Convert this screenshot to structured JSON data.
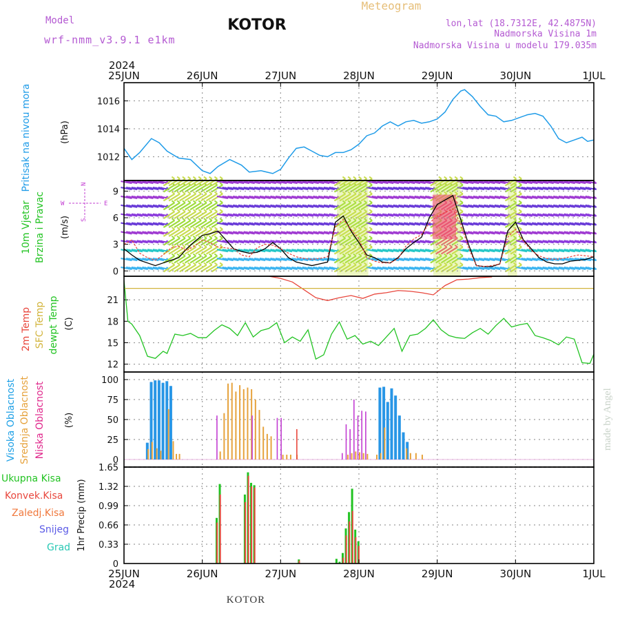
{
  "header": {
    "model_label": "Model",
    "model_name": "wrf-nmm_v3.9.1 e1km",
    "title": "KOTOR",
    "meteogram": "Meteogram",
    "lonlat": "lon,lat (18.7312E, 42.4875N)",
    "elevation": "Nadmorska Visina 1m",
    "model_elevation": "Nadmorska Visina u modelu 179.035m",
    "year_top": "2024",
    "year_bottom": "2024",
    "footer": "KOTOR",
    "watermark": "made by Angel"
  },
  "colors": {
    "pressure": "#1e9be8",
    "green": "#22c322",
    "red": "#e8463c",
    "orange": "#e6a23c",
    "purple": "#c23cd2",
    "blue": "#2896e6",
    "black": "#000000",
    "grid": "#9a9a9a",
    "header_purple": "#b45ad2",
    "header_orange": "#e6be78"
  },
  "time_axis": {
    "labels": [
      "25JUN",
      "26JUN",
      "27JUN",
      "28JUN",
      "29JUN",
      "30JUN",
      "1JUL"
    ],
    "days": 6
  },
  "chart_data": [
    {
      "type": "line",
      "ylabel": [
        "Pritisak na nivou mora",
        "(hPa)"
      ],
      "yticks": [
        1012,
        1014,
        1016
      ],
      "ylim": [
        1010.3,
        1017.3
      ],
      "series": [
        {
          "color": "#1e9be8",
          "x": [
            0,
            0.1,
            0.2,
            0.35,
            0.45,
            0.55,
            0.7,
            0.85,
            1.0,
            1.1,
            1.2,
            1.35,
            1.5,
            1.6,
            1.75,
            1.9,
            2.0,
            2.1,
            2.2,
            2.3,
            2.4,
            2.5,
            2.6,
            2.7,
            2.8,
            2.9,
            3.0,
            3.1,
            3.2,
            3.3,
            3.4,
            3.5,
            3.6,
            3.7,
            3.8,
            3.9,
            4.0,
            4.1,
            4.2,
            4.3,
            4.35,
            4.45,
            4.55,
            4.65,
            4.75,
            4.85,
            4.95,
            5.05,
            5.15,
            5.25,
            5.35,
            5.45,
            5.55,
            5.65,
            5.75,
            5.85,
            5.92,
            6.0
          ],
          "values": [
            1012.6,
            1011.8,
            1012.3,
            1013.3,
            1013.0,
            1012.4,
            1011.9,
            1011.8,
            1011.0,
            1010.8,
            1011.3,
            1011.8,
            1011.4,
            1010.9,
            1011.0,
            1010.8,
            1011.1,
            1011.9,
            1012.6,
            1012.7,
            1012.4,
            1012.1,
            1012.0,
            1012.3,
            1012.3,
            1012.5,
            1012.9,
            1013.5,
            1013.7,
            1014.2,
            1014.5,
            1014.2,
            1014.5,
            1014.6,
            1014.4,
            1014.5,
            1014.7,
            1015.2,
            1016.1,
            1016.7,
            1016.8,
            1016.3,
            1015.6,
            1015.0,
            1014.9,
            1014.5,
            1014.6,
            1014.8,
            1015.0,
            1015.1,
            1014.9,
            1014.2,
            1013.3,
            1013.0,
            1013.2,
            1013.4,
            1013.1,
            1013.2
          ]
        }
      ]
    },
    {
      "type": "line",
      "ylabel": [
        "10m Vjetar",
        "Brzina i Pravac",
        "(m/s)"
      ],
      "yticks": [
        0,
        3,
        6,
        9
      ],
      "ylim": [
        -0.6,
        10.2
      ],
      "compass": {
        "n": "N",
        "e": "E",
        "w": "W",
        "s": "S"
      },
      "series": [
        {
          "name": "black",
          "x": [
            0,
            0.1,
            0.2,
            0.3,
            0.4,
            0.5,
            0.6,
            0.7,
            0.8,
            0.9,
            1.0,
            1.1,
            1.2,
            1.3,
            1.4,
            1.5,
            1.6,
            1.7,
            1.8,
            1.9,
            2.0,
            2.1,
            2.2,
            2.3,
            2.4,
            2.5,
            2.6,
            2.7,
            2.8,
            2.9,
            3.0,
            3.1,
            3.2,
            3.3,
            3.4,
            3.5,
            3.6,
            3.7,
            3.8,
            3.9,
            4.0,
            4.1,
            4.2,
            4.3,
            4.4,
            4.5,
            4.6,
            4.7,
            4.8,
            4.9,
            5.0,
            5.1,
            5.2,
            5.3,
            5.4,
            5.5,
            5.6,
            5.7,
            5.8,
            5.9,
            6.0
          ],
          "values": [
            2.5,
            1.8,
            1.2,
            0.9,
            0.6,
            0.9,
            1.2,
            1.5,
            2.5,
            3.3,
            4.0,
            4.2,
            4.5,
            3.5,
            2.5,
            2.2,
            2.0,
            2.1,
            2.5,
            3.2,
            2.5,
            1.5,
            1.0,
            0.8,
            0.6,
            0.8,
            1.0,
            5.5,
            6.2,
            4.5,
            3.2,
            1.8,
            1.5,
            1.0,
            0.9,
            1.5,
            2.5,
            3.2,
            3.8,
            6.0,
            7.5,
            8.0,
            8.5,
            5.8,
            3.0,
            0.6,
            0.5,
            0.5,
            0.8,
            4.5,
            5.5,
            3.5,
            2.5,
            1.5,
            1.0,
            0.8,
            0.8,
            1.1,
            1.2,
            1.3,
            1.6
          ]
        },
        {
          "name": "red",
          "x": [
            0,
            0.1,
            0.2,
            0.3,
            0.4,
            0.5,
            0.6,
            0.7,
            0.8,
            0.9,
            1.0,
            1.1,
            1.2,
            1.3,
            1.4,
            1.5,
            1.6,
            1.7,
            1.8,
            1.9,
            2.0,
            2.1,
            2.2,
            2.3,
            2.4,
            2.5,
            2.6,
            2.7,
            2.8,
            2.9,
            3.0,
            3.1,
            3.2,
            3.3,
            3.4,
            3.5,
            3.6,
            3.7,
            3.8,
            3.9,
            4.0,
            4.1,
            4.2,
            4.3,
            4.4,
            4.5,
            4.6,
            4.7,
            4.8,
            4.9,
            5.0,
            5.1,
            5.2,
            5.3,
            5.4,
            5.5,
            5.6,
            5.7,
            5.8,
            5.9,
            6.0
          ],
          "values": [
            3.0,
            3.5,
            2.0,
            1.5,
            1.2,
            1.8,
            2.6,
            2.8,
            2.3,
            2.8,
            3.5,
            3.2,
            2.7,
            2.6,
            2.5,
            1.8,
            1.6,
            2.6,
            3.0,
            2.9,
            2.5,
            2.0,
            1.6,
            1.4,
            1.3,
            1.4,
            1.6,
            5.0,
            5.8,
            4.7,
            3.6,
            1.5,
            1.1,
            0.9,
            0.9,
            1.4,
            2.8,
            3.6,
            4.1,
            5.4,
            6.2,
            6.6,
            7.0,
            5.3,
            2.6,
            0.6,
            0.5,
            0.6,
            0.8,
            3.8,
            4.7,
            3.4,
            2.3,
            1.7,
            1.4,
            1.3,
            1.4,
            1.6,
            1.8,
            1.7,
            1.6
          ]
        }
      ]
    },
    {
      "type": "line",
      "ylabel": [
        "2m Temp",
        "SFC Temp",
        "dewpt Temp",
        "(C)"
      ],
      "yticks": [
        12,
        15,
        18,
        21
      ],
      "ylim": [
        10.9,
        24.3
      ],
      "series": [
        {
          "name": "green",
          "x": [
            0,
            0.05,
            0.1,
            0.2,
            0.3,
            0.4,
            0.5,
            0.55,
            0.65,
            0.75,
            0.85,
            0.95,
            1.05,
            1.15,
            1.25,
            1.35,
            1.45,
            1.55,
            1.65,
            1.75,
            1.85,
            1.95,
            2.05,
            2.15,
            2.25,
            2.35,
            2.45,
            2.55,
            2.65,
            2.75,
            2.85,
            2.95,
            3.05,
            3.15,
            3.25,
            3.35,
            3.45,
            3.55,
            3.65,
            3.75,
            3.85,
            3.95,
            4.05,
            4.15,
            4.25,
            4.35,
            4.45,
            4.55,
            4.65,
            4.75,
            4.85,
            4.95,
            5.05,
            5.15,
            5.25,
            5.35,
            5.45,
            5.55,
            5.65,
            5.75,
            5.85,
            5.95,
            6.0
          ],
          "values": [
            23.7,
            18.0,
            17.6,
            16.0,
            13.1,
            12.8,
            13.8,
            13.5,
            16.2,
            16.0,
            16.3,
            15.7,
            15.7,
            16.7,
            17.5,
            17.0,
            16.0,
            17.8,
            15.8,
            16.7,
            17.0,
            17.8,
            15.0,
            15.8,
            15.2,
            16.8,
            12.7,
            13.3,
            16.2,
            17.9,
            15.5,
            16.0,
            14.8,
            15.2,
            14.6,
            15.8,
            17.0,
            13.8,
            16.0,
            16.2,
            17.0,
            18.2,
            16.8,
            16.0,
            15.7,
            15.6,
            16.4,
            17.0,
            16.2,
            17.4,
            18.4,
            17.2,
            17.5,
            17.7,
            16.0,
            15.7,
            15.3,
            14.7,
            15.8,
            15.5,
            12.2,
            12.1,
            13.4
          ]
        },
        {
          "name": "red",
          "x": [
            1.85,
            2.0,
            2.15,
            2.3,
            2.45,
            2.6,
            2.75,
            2.9,
            3.05,
            3.2,
            3.35,
            3.5,
            3.65,
            3.8,
            3.95,
            4.1,
            4.25,
            4.4,
            4.55,
            4.7
          ],
          "values": [
            24.3,
            24.0,
            23.5,
            22.4,
            21.3,
            20.9,
            21.3,
            21.6,
            21.2,
            21.8,
            22.0,
            22.3,
            22.2,
            22.0,
            21.7,
            23.0,
            23.8,
            23.9,
            24.1,
            24.2
          ]
        },
        {
          "name": "orange",
          "x": [
            0,
            6.0
          ],
          "values": [
            22.6,
            22.6
          ]
        }
      ]
    },
    {
      "type": "bar",
      "ylabel": [
        "Visoka Oblacnost",
        "Srednja Oblacnost",
        "Niska Oblacnost",
        "(%)"
      ],
      "yticks": [
        0,
        25,
        50,
        75,
        100
      ],
      "ylim": [
        0,
        100
      ],
      "series": [
        {
          "name": "high",
          "color": "#2896e6",
          "x": [
            0.28,
            0.33,
            0.38,
            0.43,
            0.48,
            0.53,
            0.58,
            3.25,
            3.3,
            3.35,
            3.4,
            3.45,
            3.5,
            3.55,
            3.6
          ],
          "values": [
            21,
            97,
            99,
            99,
            96,
            98,
            92,
            90,
            91,
            72,
            89,
            80,
            55,
            34,
            22
          ]
        },
        {
          "name": "mid",
          "color": "#e6a23c",
          "x": [
            0.3,
            0.35,
            0.41,
            0.46,
            0.56,
            0.62,
            0.66,
            0.7,
            1.22,
            1.27,
            1.32,
            1.37,
            1.42,
            1.47,
            1.52,
            1.57,
            1.62,
            1.67,
            1.72,
            1.77,
            1.82,
            1.87,
            2.02,
            2.07,
            2.12,
            2.2,
            2.85,
            2.9,
            2.95,
            3.0,
            3.05,
            3.1,
            3.22,
            3.27,
            3.32,
            3.6,
            3.65,
            3.72,
            3.8
          ],
          "values": [
            13,
            22,
            14,
            11,
            63,
            23,
            7,
            7,
            10,
            58,
            95,
            96,
            85,
            93,
            88,
            90,
            88,
            75,
            62,
            41,
            32,
            29,
            6,
            6,
            6,
            6,
            6,
            8,
            10,
            9,
            8,
            7,
            6,
            8,
            40,
            14,
            8,
            8,
            6
          ]
        },
        {
          "name": "low",
          "color": "#c23cd2",
          "x": [
            1.18,
            1.63,
            1.95,
            2.0,
            2.78,
            2.83,
            2.88,
            2.93,
            2.98,
            3.03,
            3.08
          ],
          "values": [
            55,
            55,
            52,
            52,
            8,
            44,
            38,
            75,
            55,
            61,
            60
          ]
        },
        {
          "name": "red",
          "color": "#e8463c",
          "x": [
            2.2
          ],
          "values": [
            38
          ]
        }
      ]
    },
    {
      "type": "bar",
      "ylabel": [
        "1hr Precip (mm)"
      ],
      "legend": [
        "Ukupna Kisa",
        "Konvek.Kisa",
        "Zaledj.Kisa",
        "Snijeg",
        "Grad"
      ],
      "yticks": [
        0,
        0.33,
        0.66,
        0.99,
        1.32,
        1.65
      ],
      "ylim": [
        0,
        1.65
      ],
      "series": [
        {
          "name": "Ukupna Kisa",
          "color": "#22c322",
          "x": [
            1.17,
            1.21,
            1.53,
            1.57,
            1.61,
            1.65,
            2.22,
            2.7,
            2.74,
            2.78,
            2.82,
            2.86,
            2.9,
            2.94,
            2.98
          ],
          "values": [
            0.78,
            1.36,
            1.18,
            1.56,
            1.38,
            1.34,
            0.07,
            0.08,
            0.03,
            0.18,
            0.6,
            0.88,
            1.28,
            0.58,
            0.38
          ]
        },
        {
          "name": "Konvek.Kisa",
          "color": "#e8463c",
          "x": [
            1.18,
            1.22,
            1.54,
            1.58,
            1.62,
            1.66,
            2.23,
            2.79,
            2.83,
            2.87,
            2.91,
            2.95,
            2.99
          ],
          "values": [
            0.7,
            1.18,
            1.05,
            1.5,
            1.32,
            1.3,
            0.05,
            0.1,
            0.48,
            0.72,
            0.9,
            0.45,
            0.3
          ]
        }
      ]
    }
  ]
}
